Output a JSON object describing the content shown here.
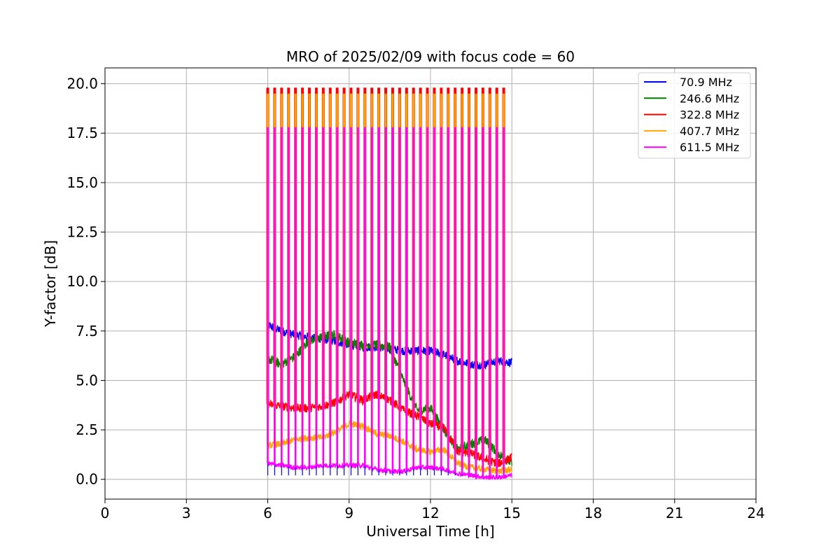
{
  "chart_data": {
    "type": "line",
    "title": "MRO of 2025/02/09 with focus code = 60",
    "xlabel": "Universal Time [h]",
    "ylabel": "Y-factor [dB]",
    "xlim": [
      0,
      24
    ],
    "ylim": [
      -1.0,
      20.8
    ],
    "xticks": [
      0,
      3,
      6,
      9,
      12,
      15,
      18,
      21,
      24
    ],
    "xtick_labels": [
      "0",
      "3",
      "6",
      "9",
      "12",
      "15",
      "18",
      "21",
      "24"
    ],
    "yticks": [
      0,
      2.5,
      5,
      7.5,
      10,
      12.5,
      15,
      17.5,
      20
    ],
    "ytick_labels": [
      "0.0",
      "2.5",
      "5.0",
      "7.5",
      "10.0",
      "12.5",
      "15.0",
      "17.5",
      "20.0"
    ],
    "grid": true,
    "legend_position": "top-right",
    "calibration_pulses": {
      "start": 6.0,
      "end": 14.7,
      "count": 35,
      "peak_values": {
        "322.8 MHz": 19.8,
        "407.7 MHz": 19.5,
        "611.5 MHz": 17.8
      }
    },
    "series": [
      {
        "name": "70.9 MHz",
        "color": "#0000ff",
        "x": [
          6.0,
          6.5,
          7.0,
          7.5,
          8.0,
          8.5,
          9.0,
          9.5,
          10.0,
          10.5,
          11.0,
          11.5,
          12.0,
          12.5,
          13.0,
          13.5,
          14.0,
          14.5,
          15.0
        ],
        "y": [
          7.8,
          7.5,
          7.3,
          7.2,
          7.1,
          7.0,
          6.8,
          6.7,
          6.7,
          6.6,
          6.5,
          6.5,
          6.5,
          6.3,
          6.0,
          5.8,
          5.8,
          6.0,
          5.9
        ]
      },
      {
        "name": "246.6 MHz",
        "color": "#008000",
        "x": [
          6.0,
          6.5,
          7.0,
          7.5,
          8.0,
          8.5,
          9.0,
          9.5,
          10.0,
          10.5,
          11.0,
          11.5,
          12.0,
          12.5,
          13.0,
          13.5,
          14.0,
          14.5,
          15.0
        ],
        "y": [
          6.1,
          5.8,
          6.2,
          7.0,
          7.2,
          7.3,
          6.9,
          6.8,
          6.8,
          6.7,
          5.0,
          3.5,
          3.6,
          2.5,
          1.5,
          1.8,
          2.0,
          1.3,
          0.8
        ]
      },
      {
        "name": "322.8 MHz",
        "color": "#ff0000",
        "x": [
          6.0,
          6.5,
          7.0,
          7.5,
          8.0,
          8.5,
          9.0,
          9.5,
          10.0,
          10.5,
          11.0,
          11.5,
          12.0,
          12.5,
          13.0,
          13.5,
          14.0,
          14.5,
          15.0
        ],
        "y": [
          3.8,
          3.7,
          3.6,
          3.6,
          3.7,
          3.9,
          4.3,
          4.0,
          4.3,
          4.0,
          3.5,
          3.2,
          2.8,
          2.6,
          1.4,
          1.3,
          1.0,
          0.8,
          1.1
        ]
      },
      {
        "name": "407.7 MHz",
        "color": "#ffa500",
        "x": [
          6.0,
          6.5,
          7.0,
          7.5,
          8.0,
          8.5,
          9.0,
          9.5,
          10.0,
          10.5,
          11.0,
          11.5,
          12.0,
          12.5,
          13.0,
          13.5,
          14.0,
          14.5,
          15.0
        ],
        "y": [
          1.7,
          1.8,
          2.0,
          2.1,
          2.1,
          2.4,
          2.8,
          2.7,
          2.3,
          2.2,
          1.9,
          1.5,
          1.4,
          1.5,
          0.8,
          0.6,
          0.5,
          0.4,
          0.5
        ]
      },
      {
        "name": "611.5 MHz",
        "color": "#ff00ff",
        "x": [
          6.0,
          6.5,
          7.0,
          7.5,
          8.0,
          8.5,
          9.0,
          9.5,
          10.0,
          10.5,
          11.0,
          11.5,
          12.0,
          12.5,
          13.0,
          13.5,
          14.0,
          14.5,
          15.0
        ],
        "y": [
          0.8,
          0.7,
          0.6,
          0.6,
          0.7,
          0.7,
          0.7,
          0.7,
          0.5,
          0.4,
          0.4,
          0.6,
          0.6,
          0.5,
          0.3,
          0.2,
          0.1,
          0.1,
          0.2
        ]
      }
    ]
  }
}
